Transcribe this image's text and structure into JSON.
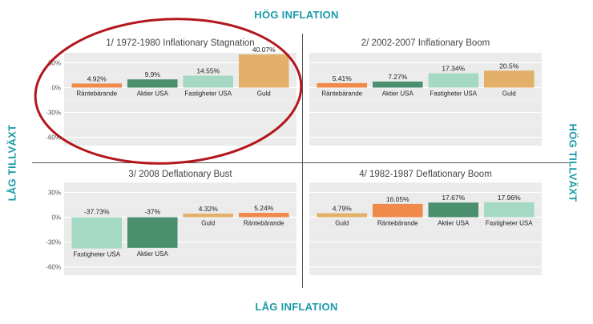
{
  "labels": {
    "top": "HÖG INFLATION",
    "bottom": "LÅG INFLATION",
    "left": "LÅG TILLVÄXT",
    "right": "HÖG TILLVÄXT"
  },
  "colors": {
    "axis_label": "#1a9aa8",
    "panel_bg": "#ebebeb",
    "annotation_ring": "#b2171c"
  },
  "chart_data": [
    {
      "type": "bar",
      "title": "1/ 1972-1980 Inflationary Stagnation",
      "categories": [
        "Räntebärande",
        "Aktier USA",
        "Fastigheter USA",
        "Guld"
      ],
      "values": [
        4.92,
        9.9,
        14.55,
        40.07
      ],
      "value_labels": [
        "4.92%",
        "9.9%",
        "14.55%",
        "40.07%"
      ],
      "colors": [
        "#f08a4b",
        "#4a8f6e",
        "#a6d9c3",
        "#e3b06a"
      ],
      "yticks": [
        "30%",
        "0%",
        "-30%",
        "-60%"
      ],
      "ylim": [
        -70,
        42
      ],
      "grid": true
    },
    {
      "type": "bar",
      "title": "2/ 2002-2007 Inflationary Boom",
      "categories": [
        "Räntebärande",
        "Aktier USA",
        "Fastigheter USA",
        "Guld"
      ],
      "values": [
        5.41,
        7.27,
        17.34,
        20.5
      ],
      "value_labels": [
        "5.41%",
        "7.27%",
        "17.34%",
        "20.5%"
      ],
      "colors": [
        "#f08a4b",
        "#4a8f6e",
        "#a6d9c3",
        "#e3b06a"
      ],
      "yticks": [],
      "ylim": [
        -70,
        42
      ],
      "grid": true
    },
    {
      "type": "bar",
      "title": "3/ 2008 Deflationary Bust",
      "categories": [
        "Fastigheter USA",
        "Aktier USA",
        "Guld",
        "Räntebärande"
      ],
      "values": [
        -37.73,
        -37,
        4.32,
        5.24
      ],
      "value_labels": [
        "-37.73%",
        "-37%",
        "4.32%",
        "5.24%"
      ],
      "colors": [
        "#a6d9c3",
        "#4a8f6e",
        "#e3b06a",
        "#f08a4b"
      ],
      "yticks": [
        "30%",
        "0%",
        "-30%",
        "-60%"
      ],
      "ylim": [
        -70,
        42
      ],
      "grid": true
    },
    {
      "type": "bar",
      "title": "4/ 1982-1987 Deflationary Boom",
      "categories": [
        "Guld",
        "Räntebärande",
        "Aktier USA",
        "Fastigheter USA"
      ],
      "values": [
        4.79,
        16.05,
        17.67,
        17.96
      ],
      "value_labels": [
        "4.79%",
        "16.05%",
        "17.67%",
        "17.96%"
      ],
      "colors": [
        "#e3b06a",
        "#f08a4b",
        "#4a8f6e",
        "#a6d9c3"
      ],
      "yticks": [],
      "ylim": [
        -70,
        42
      ],
      "grid": true
    }
  ]
}
